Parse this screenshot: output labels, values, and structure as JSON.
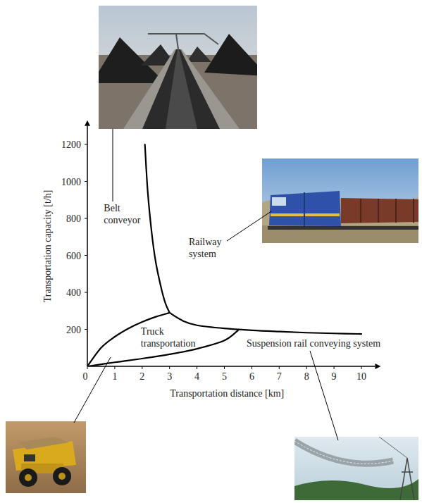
{
  "chart_data": {
    "type": "line",
    "x_label": "Transportation distance [km]",
    "y_label": "Transportation capacity [t/h]",
    "xlim": [
      0,
      10.5
    ],
    "ylim": [
      0,
      1300
    ],
    "xticks": [
      0,
      1,
      2,
      3,
      4,
      5,
      6,
      7,
      8,
      9,
      10
    ],
    "yticks": [
      200,
      400,
      600,
      800,
      1000,
      1200
    ],
    "series": [
      {
        "color": "#000000",
        "x": [
          2.1,
          2.2,
          2.35,
          2.5,
          2.7,
          2.85,
          3.0
        ],
        "values": [
          1200,
          950,
          720,
          560,
          420,
          340,
          290
        ]
      },
      {
        "color": "#000000",
        "x": [
          3.0,
          3.5,
          4,
          5,
          6,
          7,
          8,
          9,
          10
        ],
        "values": [
          290,
          245,
          222,
          205,
          195,
          188,
          182,
          178,
          175
        ]
      },
      {
        "color": "#000000",
        "x": [
          0,
          0.5,
          1,
          1.5,
          2,
          2.5,
          3.0
        ],
        "values": [
          0,
          100,
          160,
          205,
          240,
          268,
          290
        ]
      },
      {
        "color": "#000000",
        "x": [
          0,
          1,
          2,
          3,
          4,
          5,
          5.5
        ],
        "values": [
          0,
          22,
          42,
          65,
          95,
          140,
          195
        ]
      }
    ],
    "annotations": [
      {
        "text": "Belt conveyor",
        "x": 0.6,
        "y": 838
      },
      {
        "text": "Railway system",
        "x": 3.7,
        "y": 655
      },
      {
        "text": "Truck transportation",
        "x": 1.95,
        "y": 171
      },
      {
        "text": "Suspension rail conveying system",
        "x": 5.81,
        "y": 107
      }
    ]
  }
}
